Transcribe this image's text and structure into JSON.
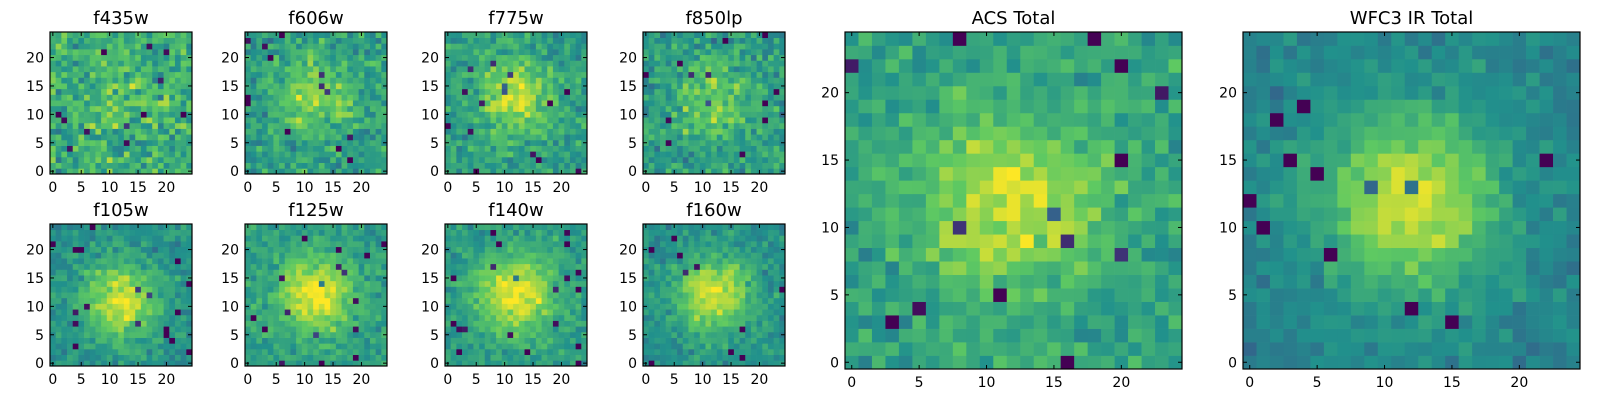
{
  "figure": {
    "colormap": "viridis",
    "colormap_stops": [
      "#440154",
      "#3b528b",
      "#21918c",
      "#5ec962",
      "#fde725"
    ]
  },
  "chart_data": [
    {
      "type": "heatmap",
      "title": "f435w",
      "x_ticks": [
        0,
        5,
        10,
        15,
        20
      ],
      "y_ticks": [
        0,
        5,
        10,
        15,
        20
      ],
      "xlim": [
        -0.5,
        24.5
      ],
      "ylim": [
        -0.5,
        24.5
      ],
      "grid": false,
      "shape": [
        25,
        25
      ],
      "source_peak": [
        12,
        12
      ],
      "source_strength": 0.08,
      "noise_level": 0.55,
      "baseline": 0.62
    },
    {
      "type": "heatmap",
      "title": "f606w",
      "x_ticks": [
        0,
        5,
        10,
        15,
        20
      ],
      "y_ticks": [
        0,
        5,
        10,
        15,
        20
      ],
      "xlim": [
        -0.5,
        24.5
      ],
      "ylim": [
        -0.5,
        24.5
      ],
      "grid": false,
      "shape": [
        25,
        25
      ],
      "source_peak": [
        12,
        13
      ],
      "source_strength": 0.3,
      "noise_level": 0.45,
      "baseline": 0.55
    },
    {
      "type": "heatmap",
      "title": "f775w",
      "x_ticks": [
        0,
        5,
        10,
        15,
        20
      ],
      "y_ticks": [
        0,
        5,
        10,
        15,
        20
      ],
      "xlim": [
        -0.5,
        24.5
      ],
      "ylim": [
        -0.5,
        24.5
      ],
      "grid": false,
      "shape": [
        25,
        25
      ],
      "source_peak": [
        12,
        13
      ],
      "source_strength": 0.35,
      "noise_level": 0.42,
      "baseline": 0.55
    },
    {
      "type": "heatmap",
      "title": "f850lp",
      "x_ticks": [
        0,
        5,
        10,
        15,
        20
      ],
      "y_ticks": [
        0,
        5,
        10,
        15,
        20
      ],
      "xlim": [
        -0.5,
        24.5
      ],
      "ylim": [
        -0.5,
        24.5
      ],
      "grid": false,
      "shape": [
        25,
        25
      ],
      "source_peak": [
        12,
        12
      ],
      "source_strength": 0.25,
      "noise_level": 0.45,
      "baseline": 0.55
    },
    {
      "type": "heatmap",
      "title": "f105w",
      "x_ticks": [
        0,
        5,
        10,
        15,
        20
      ],
      "y_ticks": [
        0,
        5,
        10,
        15,
        20
      ],
      "xlim": [
        -0.5,
        24.5
      ],
      "ylim": [
        -0.5,
        24.5
      ],
      "grid": false,
      "shape": [
        25,
        25
      ],
      "source_peak": [
        12,
        11
      ],
      "source_strength": 0.45,
      "noise_level": 0.32,
      "baseline": 0.5
    },
    {
      "type": "heatmap",
      "title": "f125w",
      "x_ticks": [
        0,
        5,
        10,
        15,
        20
      ],
      "y_ticks": [
        0,
        5,
        10,
        15,
        20
      ],
      "xlim": [
        -0.5,
        24.5
      ],
      "ylim": [
        -0.5,
        24.5
      ],
      "grid": false,
      "shape": [
        25,
        25
      ],
      "source_peak": [
        12,
        12
      ],
      "source_strength": 0.45,
      "noise_level": 0.32,
      "baseline": 0.55
    },
    {
      "type": "heatmap",
      "title": "f140w",
      "x_ticks": [
        0,
        5,
        10,
        15,
        20
      ],
      "y_ticks": [
        0,
        5,
        10,
        15,
        20
      ],
      "xlim": [
        -0.5,
        24.5
      ],
      "ylim": [
        -0.5,
        24.5
      ],
      "grid": false,
      "shape": [
        25,
        25
      ],
      "source_peak": [
        12,
        12
      ],
      "source_strength": 0.45,
      "noise_level": 0.3,
      "baseline": 0.55
    },
    {
      "type": "heatmap",
      "title": "f160w",
      "x_ticks": [
        0,
        5,
        10,
        15,
        20
      ],
      "y_ticks": [
        0,
        5,
        10,
        15,
        20
      ],
      "xlim": [
        -0.5,
        24.5
      ],
      "ylim": [
        -0.5,
        24.5
      ],
      "grid": false,
      "shape": [
        25,
        25
      ],
      "source_peak": [
        12,
        12
      ],
      "source_strength": 0.45,
      "noise_level": 0.3,
      "baseline": 0.5
    },
    {
      "type": "heatmap",
      "title": "ACS Total",
      "x_ticks": [
        0,
        5,
        10,
        15,
        20
      ],
      "y_ticks": [
        0,
        5,
        10,
        15,
        20
      ],
      "xlim": [
        -0.5,
        24.5
      ],
      "ylim": [
        -0.5,
        24.5
      ],
      "grid": false,
      "shape": [
        25,
        25
      ],
      "source_peak": [
        12,
        12
      ],
      "source_strength": 0.35,
      "noise_level": 0.38,
      "baseline": 0.58
    },
    {
      "type": "heatmap",
      "title": "WFC3 IR Total",
      "x_ticks": [
        0,
        5,
        10,
        15,
        20
      ],
      "y_ticks": [
        0,
        5,
        10,
        15,
        20
      ],
      "xlim": [
        -0.5,
        24.5
      ],
      "ylim": [
        -0.5,
        24.5
      ],
      "grid": false,
      "shape": [
        25,
        25
      ],
      "source_peak": [
        12,
        12
      ],
      "source_strength": 0.5,
      "noise_level": 0.24,
      "baseline": 0.45
    }
  ]
}
